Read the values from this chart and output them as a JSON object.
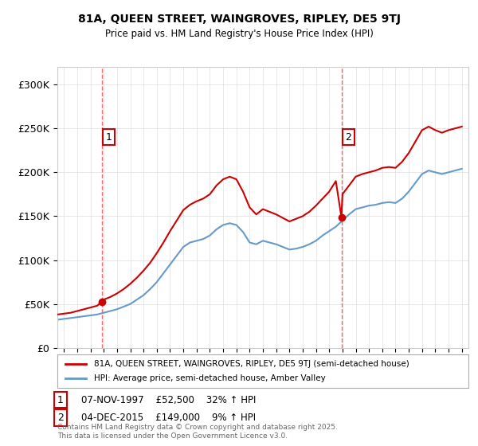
{
  "title": "81A, QUEEN STREET, WAINGROVES, RIPLEY, DE5 9TJ",
  "subtitle": "Price paid vs. HM Land Registry's House Price Index (HPI)",
  "xlim": [
    1994.5,
    2025.5
  ],
  "ylim": [
    0,
    320000
  ],
  "yticks": [
    0,
    50000,
    100000,
    150000,
    200000,
    250000,
    300000
  ],
  "ytick_labels": [
    "£0",
    "£50K",
    "£100K",
    "£150K",
    "£200K",
    "£250K",
    "£300K"
  ],
  "xticks": [
    1995,
    1996,
    1997,
    1998,
    1999,
    2000,
    2001,
    2002,
    2003,
    2004,
    2005,
    2006,
    2007,
    2008,
    2009,
    2010,
    2011,
    2012,
    2013,
    2014,
    2015,
    2016,
    2017,
    2018,
    2019,
    2020,
    2021,
    2022,
    2023,
    2024,
    2025
  ],
  "sale1_x": 1997.85,
  "sale1_y": 52500,
  "sale1_label": "1",
  "sale1_date": "07-NOV-1997",
  "sale1_price": "£52,500",
  "sale1_hpi": "32% ↑ HPI",
  "sale2_x": 2015.92,
  "sale2_y": 149000,
  "sale2_label": "2",
  "sale2_date": "04-DEC-2015",
  "sale2_price": "£149,000",
  "sale2_hpi": "9% ↑ HPI",
  "red_line_color": "#cc0000",
  "blue_line_color": "#6699cc",
  "marker_color": "#cc0000",
  "vline_color": "#ff6666",
  "background_color": "#ffffff",
  "legend_line1": "81A, QUEEN STREET, WAINGROVES, RIPLEY, DE5 9TJ (semi-detached house)",
  "legend_line2": "HPI: Average price, semi-detached house, Amber Valley",
  "footer": "Contains HM Land Registry data © Crown copyright and database right 2025.\nThis data is licensed under the Open Government Licence v3.0.",
  "hpi_data": {
    "years": [
      1994.5,
      1995.0,
      1995.5,
      1996.0,
      1996.5,
      1997.0,
      1997.5,
      1998.0,
      1998.5,
      1999.0,
      1999.5,
      2000.0,
      2000.5,
      2001.0,
      2001.5,
      2002.0,
      2002.5,
      2003.0,
      2003.5,
      2004.0,
      2004.5,
      2005.0,
      2005.5,
      2006.0,
      2006.5,
      2007.0,
      2007.5,
      2008.0,
      2008.5,
      2009.0,
      2009.5,
      2010.0,
      2010.5,
      2011.0,
      2011.5,
      2012.0,
      2012.5,
      2013.0,
      2013.5,
      2014.0,
      2014.5,
      2015.0,
      2015.5,
      2016.0,
      2016.5,
      2017.0,
      2017.5,
      2018.0,
      2018.5,
      2019.0,
      2019.5,
      2020.0,
      2020.5,
      2021.0,
      2021.5,
      2022.0,
      2022.5,
      2023.0,
      2023.5,
      2024.0,
      2024.5,
      2025.0
    ],
    "values": [
      32000,
      33000,
      34000,
      35000,
      36000,
      37000,
      38000,
      40000,
      42000,
      44000,
      47000,
      50000,
      55000,
      60000,
      67000,
      75000,
      85000,
      95000,
      105000,
      115000,
      120000,
      122000,
      124000,
      128000,
      135000,
      140000,
      142000,
      140000,
      132000,
      120000,
      118000,
      122000,
      120000,
      118000,
      115000,
      112000,
      113000,
      115000,
      118000,
      122000,
      128000,
      133000,
      138000,
      145000,
      152000,
      158000,
      160000,
      162000,
      163000,
      165000,
      166000,
      165000,
      170000,
      178000,
      188000,
      198000,
      202000,
      200000,
      198000,
      200000,
      202000,
      204000
    ]
  },
  "property_data": {
    "years": [
      1994.5,
      1995.0,
      1995.5,
      1996.0,
      1996.5,
      1997.0,
      1997.5,
      1997.85,
      1998.0,
      1998.5,
      1999.0,
      1999.5,
      2000.0,
      2000.5,
      2001.0,
      2001.5,
      2002.0,
      2002.5,
      2003.0,
      2003.5,
      2004.0,
      2004.5,
      2005.0,
      2005.5,
      2006.0,
      2006.5,
      2007.0,
      2007.5,
      2008.0,
      2008.5,
      2009.0,
      2009.5,
      2010.0,
      2010.5,
      2011.0,
      2011.5,
      2012.0,
      2012.5,
      2013.0,
      2013.5,
      2014.0,
      2014.5,
      2015.0,
      2015.5,
      2015.92,
      2016.0,
      2016.5,
      2017.0,
      2017.5,
      2018.0,
      2018.5,
      2019.0,
      2019.5,
      2020.0,
      2020.5,
      2021.0,
      2021.5,
      2022.0,
      2022.5,
      2023.0,
      2023.5,
      2024.0,
      2024.5,
      2025.0
    ],
    "values": [
      38000,
      39000,
      40000,
      42000,
      44000,
      46000,
      48000,
      52500,
      55000,
      58000,
      62000,
      67000,
      73000,
      80000,
      88000,
      97000,
      108000,
      120000,
      133000,
      145000,
      157000,
      163000,
      167000,
      170000,
      175000,
      185000,
      192000,
      195000,
      192000,
      178000,
      160000,
      152000,
      158000,
      155000,
      152000,
      148000,
      144000,
      147000,
      150000,
      155000,
      162000,
      170000,
      178000,
      190000,
      149000,
      175000,
      185000,
      195000,
      198000,
      200000,
      202000,
      205000,
      206000,
      205000,
      212000,
      222000,
      235000,
      248000,
      252000,
      248000,
      245000,
      248000,
      250000,
      252000
    ]
  }
}
